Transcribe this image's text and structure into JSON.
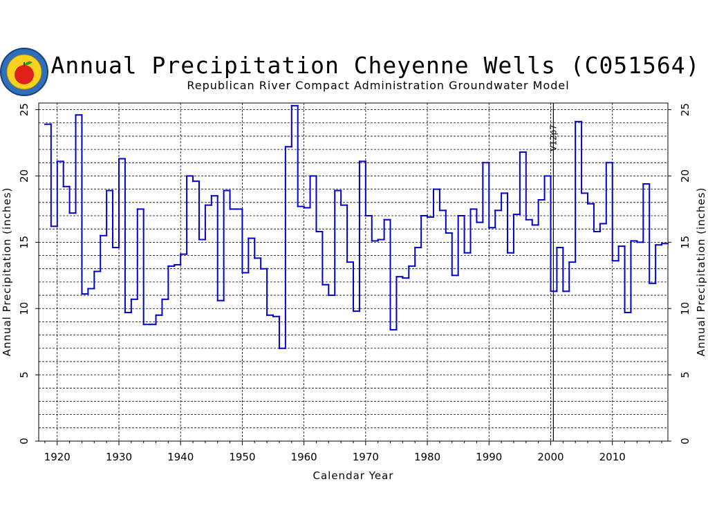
{
  "chart_data": {
    "type": "line",
    "step": true,
    "title": "Annual Precipitation Cheyenne Wells (C051564)",
    "subtitle": "Republican River Compact Administration Groundwater Model",
    "xlabel": "Calendar Year",
    "ylabel": "Annual Precipitation (inches)",
    "ylabel_right": "Annual Precipitation (inches)",
    "xlim": [
      1917,
      2019
    ],
    "ylim": [
      0,
      25.5
    ],
    "x_ticks": [
      1920,
      1930,
      1940,
      1950,
      1960,
      1970,
      1980,
      1990,
      2000,
      2010
    ],
    "y_ticks": [
      0,
      5,
      10,
      15,
      20,
      25
    ],
    "grid": true,
    "series_color": "#0000cc",
    "annotation": {
      "x": 2001,
      "label": "V12p7"
    },
    "series": [
      {
        "x": [
          1918,
          1919,
          1920,
          1921,
          1922,
          1923,
          1924,
          1925,
          1926,
          1927,
          1928,
          1929,
          1930,
          1931,
          1932,
          1933,
          1934,
          1935,
          1936,
          1937,
          1938,
          1939,
          1940,
          1941,
          1942,
          1943,
          1944,
          1945,
          1946,
          1947,
          1948,
          1949,
          1950,
          1951,
          1952,
          1953,
          1954,
          1955,
          1956,
          1957,
          1958,
          1959,
          1960,
          1961,
          1962,
          1963,
          1964,
          1965,
          1966,
          1967,
          1968,
          1969,
          1970,
          1971,
          1972,
          1973,
          1974,
          1975,
          1976,
          1977,
          1978,
          1979,
          1980,
          1981,
          1982,
          1983,
          1984,
          1985,
          1986,
          1987,
          1988,
          1989,
          1990,
          1991,
          1992,
          1993,
          1994,
          1995,
          1996,
          1997,
          1998,
          1999,
          2000,
          2001,
          2002,
          2003,
          2004,
          2005,
          2006,
          2007,
          2008,
          2009,
          2010,
          2011,
          2012,
          2013,
          2014,
          2015,
          2016,
          2017,
          2018
        ],
        "values": [
          23.9,
          16.2,
          21.1,
          19.2,
          17.2,
          24.6,
          11.1,
          11.5,
          12.8,
          15.5,
          18.9,
          14.6,
          21.3,
          9.7,
          10.7,
          17.5,
          8.8,
          8.8,
          9.5,
          10.7,
          13.2,
          13.3,
          14.1,
          20.0,
          19.6,
          15.2,
          17.8,
          18.5,
          10.6,
          18.9,
          17.5,
          17.5,
          12.7,
          15.3,
          13.8,
          13.0,
          9.5,
          9.4,
          7.0,
          22.2,
          25.3,
          17.7,
          17.6,
          20.0,
          15.8,
          11.8,
          11.0,
          18.9,
          17.8,
          13.5,
          9.8,
          21.1,
          17.0,
          15.1,
          15.2,
          16.7,
          8.4,
          12.4,
          12.3,
          13.2,
          14.6,
          17.0,
          16.9,
          19.0,
          17.4,
          15.7,
          12.5,
          17.0,
          14.2,
          17.5,
          16.5,
          21.0,
          16.1,
          17.4,
          18.7,
          14.2,
          17.1,
          21.8,
          16.7,
          16.3,
          18.2,
          20.0,
          11.3,
          14.6,
          11.3,
          13.5,
          24.1,
          18.7,
          17.9,
          15.8,
          16.4,
          21.0,
          13.6,
          14.7,
          9.7,
          15.1,
          15.0,
          19.4,
          11.9,
          14.8,
          14.9
        ]
      }
    ]
  }
}
